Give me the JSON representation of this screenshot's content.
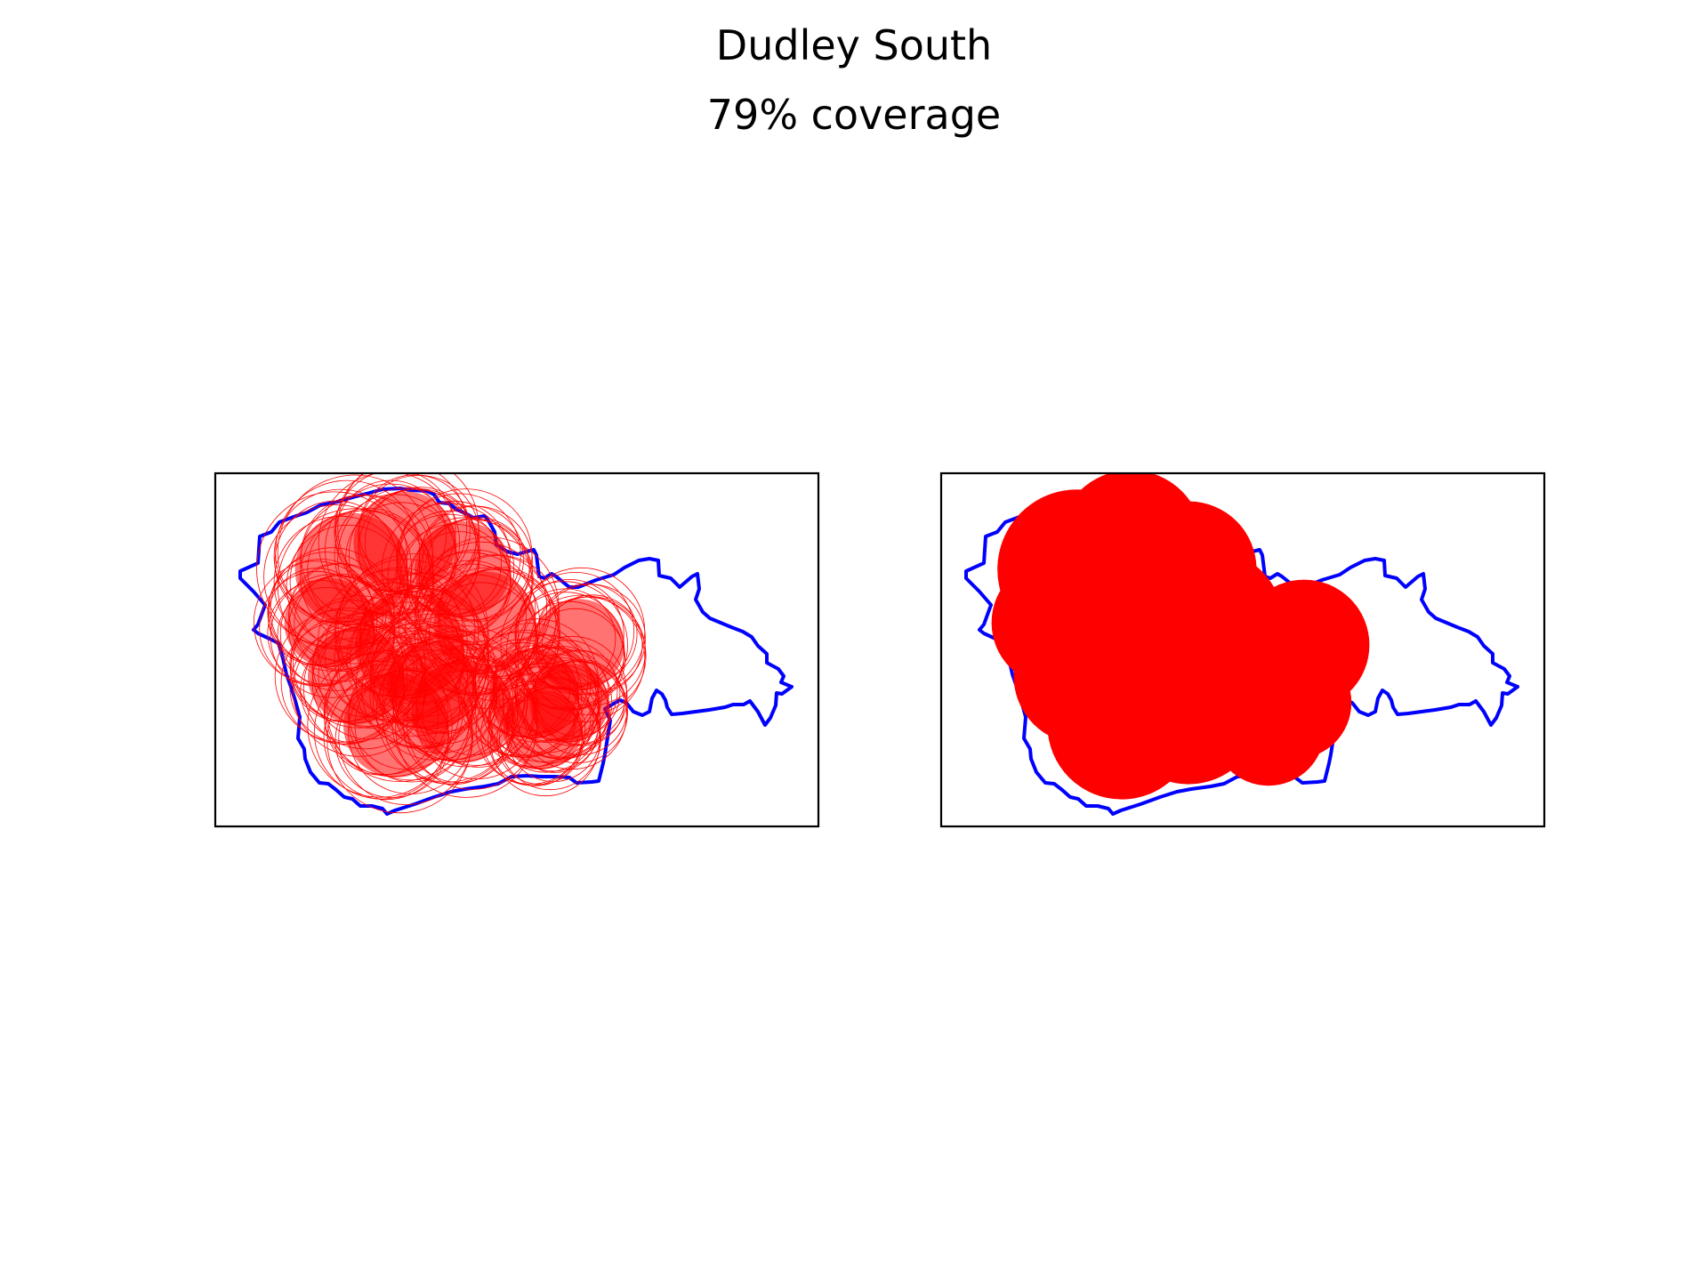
{
  "figure": {
    "title": "Dudley South",
    "subtitle": "79% coverage"
  },
  "colors": {
    "boundary": "#0000ff",
    "coverage": "#ff0000",
    "frame": "#000000",
    "background": "#ffffff"
  },
  "panels": [
    {
      "name": "buffer-outlines",
      "style": "many outlined circles"
    },
    {
      "name": "merged-coverage",
      "style": "filled union"
    }
  ]
}
